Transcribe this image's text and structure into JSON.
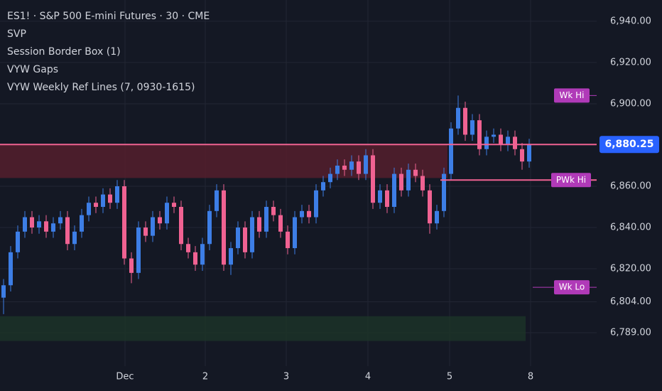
{
  "chart_data": {
    "type": "candlestick",
    "title": "ES1! · S&P 500 E-mini Futures · 30 · CME",
    "indicators": [
      "SVP",
      "Session Border Box (1)",
      "VYW Gaps",
      "VYW Weekly Ref Lines (7, 0930-1615)"
    ],
    "up_color": "#3d7ee6",
    "down_color": "#f06292",
    "grid": true,
    "open": [
      6806,
      6812,
      6828,
      6838,
      6845,
      6840,
      6843,
      6838,
      6842,
      6845,
      6832,
      6838,
      6846,
      6852,
      6850,
      6856,
      6852,
      6860,
      6825,
      6818,
      6840,
      6836,
      6845,
      6842,
      6852,
      6850,
      6832,
      6828,
      6822,
      6832,
      6848,
      6858,
      6822,
      6830,
      6840,
      6828,
      6845,
      6838,
      6850,
      6846,
      6838,
      6830,
      6845,
      6848,
      6845,
      6858,
      6862,
      6866,
      6870,
      6868,
      6872,
      6866,
      6875,
      6852,
      6858,
      6850,
      6866,
      6858,
      6868,
      6865,
      6858,
      6842,
      6848,
      6866,
      6888,
      6898,
      6885,
      6892,
      6878,
      6884,
      6885,
      6880,
      6884,
      6878,
      6872
    ],
    "high": [
      6815,
      6831,
      6841,
      6848,
      6848,
      6846,
      6846,
      6845,
      6848,
      6848,
      6841,
      6849,
      6855,
      6855,
      6859,
      6859,
      6863,
      6863,
      6828,
      6843,
      6843,
      6848,
      6848,
      6855,
      6855,
      6853,
      6835,
      6831,
      6835,
      6851,
      6861,
      6861,
      6833,
      6843,
      6843,
      6848,
      6848,
      6853,
      6853,
      6849,
      6841,
      6848,
      6851,
      6851,
      6861,
      6865,
      6869,
      6873,
      6873,
      6875,
      6875,
      6878,
      6878,
      6861,
      6861,
      6869,
      6869,
      6871,
      6871,
      6868,
      6861,
      6851,
      6869,
      6891,
      6904,
      6901,
      6895,
      6895,
      6887,
      6888,
      6888,
      6887,
      6887,
      6881,
      6883
    ],
    "low": [
      6798,
      6809,
      6825,
      6835,
      6837,
      6837,
      6835,
      6835,
      6839,
      6829,
      6829,
      6835,
      6843,
      6847,
      6847,
      6849,
      6849,
      6822,
      6813,
      6815,
      6833,
      6833,
      6839,
      6839,
      6847,
      6829,
      6825,
      6819,
      6819,
      6829,
      6845,
      6819,
      6817,
      6827,
      6825,
      6825,
      6835,
      6835,
      6843,
      6835,
      6827,
      6827,
      6842,
      6842,
      6842,
      6855,
      6859,
      6863,
      6865,
      6865,
      6863,
      6863,
      6849,
      6849,
      6847,
      6847,
      6855,
      6855,
      6862,
      6855,
      6837,
      6839,
      6845,
      6863,
      6885,
      6882,
      6882,
      6875,
      6875,
      6881,
      6877,
      6877,
      6875,
      6868,
      6869
    ],
    "close": [
      6812,
      6828,
      6838,
      6845,
      6840,
      6843,
      6838,
      6842,
      6845,
      6832,
      6838,
      6846,
      6852,
      6850,
      6856,
      6852,
      6860,
      6825,
      6818,
      6840,
      6836,
      6845,
      6842,
      6852,
      6850,
      6832,
      6828,
      6822,
      6832,
      6848,
      6858,
      6822,
      6830,
      6840,
      6828,
      6845,
      6838,
      6850,
      6846,
      6838,
      6830,
      6845,
      6848,
      6845,
      6858,
      6862,
      6866,
      6870,
      6868,
      6872,
      6866,
      6875,
      6852,
      6858,
      6850,
      6866,
      6858,
      6868,
      6865,
      6858,
      6842,
      6848,
      6866,
      6888,
      6898,
      6885,
      6892,
      6878,
      6884,
      6885,
      6880,
      6884,
      6878,
      6872,
      6880.25
    ],
    "xlim": [
      -0.5,
      83.5
    ],
    "xticks": [
      {
        "value": 17.1,
        "label": "Dec"
      },
      {
        "value": 28.4,
        "label": "2"
      },
      {
        "value": 39.8,
        "label": "3"
      },
      {
        "value": 51.3,
        "label": "4"
      },
      {
        "value": 62.8,
        "label": "5"
      },
      {
        "value": 74.2,
        "label": "8"
      }
    ],
    "ylim": [
      6772.8,
      6950.3
    ],
    "yticks": [
      {
        "value": 6940,
        "label": "6,940.00"
      },
      {
        "value": 6920,
        "label": "6,920.00"
      },
      {
        "value": 6900,
        "label": "6,900.00"
      },
      {
        "value": 6860,
        "label": "6,860.00"
      },
      {
        "value": 6840,
        "label": "6,840.00"
      },
      {
        "value": 6820,
        "label": "6,820.00"
      },
      {
        "value": 6804,
        "label": "6,804.00"
      },
      {
        "value": 6789,
        "label": "6,789.00"
      }
    ],
    "last_price": {
      "value": 6880.25,
      "label": "6,880.25"
    },
    "ref_lines": [
      {
        "name": "Wk Hi",
        "value": 6904,
        "color": "#b03ab8"
      },
      {
        "name": "PWk Hi",
        "value": 6863,
        "color": "#b03ab8"
      },
      {
        "name": "Wk Lo",
        "value": 6811,
        "color": "#b03ab8"
      }
    ],
    "zones": [
      {
        "from": 6864,
        "to": 6880,
        "color": "#5c1f2e"
      },
      {
        "from": 6785,
        "to": 6797,
        "color": "#1c3528"
      }
    ]
  }
}
